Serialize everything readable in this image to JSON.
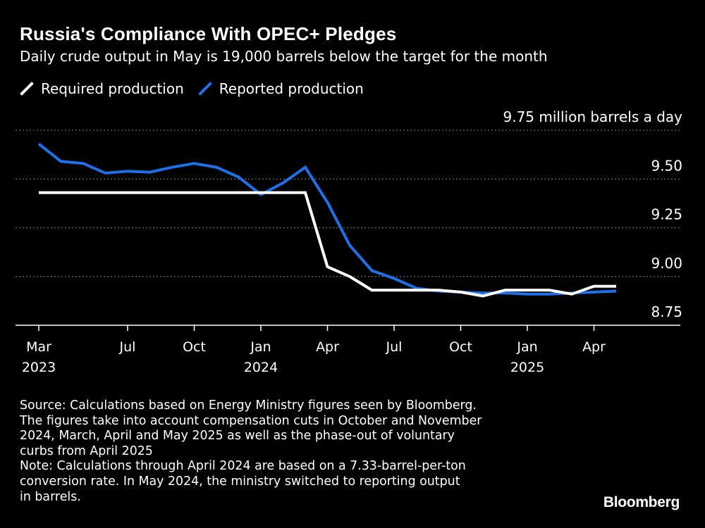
{
  "header": {
    "title": "Russia's Compliance With OPEC+ Pledges",
    "subtitle": "Daily crude output in May is 19,000 barrels below the target for the month"
  },
  "footer": {
    "lines": [
      "Source: Calculations based on Energy Ministry figures seen by Bloomberg.",
      "The figures take into account compensation cuts in October and November",
      "2024, March, April and May 2025 as well as the phase-out of voluntary",
      "curbs from April 2025",
      "Note: Calculations through April 2024 are based on a 7.33-barrel-per-ton",
      "conversion rate. In May 2024, the ministry switched to reporting output",
      "in barrels."
    ],
    "brand": "Bloomberg"
  },
  "colors": {
    "background": "#000000",
    "required": "#ffffff",
    "reported": "#1f6fe6",
    "grid": "#6b6b6b",
    "text": "#ffffff"
  },
  "chart_data": {
    "type": "line",
    "title": "Russia's Compliance With OPEC+ Pledges",
    "subtitle": "Daily crude output in May is 19,000 barrels below the target for the month",
    "xlabel": "",
    "ylabel": "",
    "unit_label": "9.75 million barrels a day",
    "ylim": [
      8.75,
      9.75
    ],
    "yticks": [
      9.5,
      9.25,
      9.0,
      8.75
    ],
    "ytick_labels": [
      "9.50",
      "9.25",
      "9.00",
      "8.75"
    ],
    "top_tick_value": 9.75,
    "grid": true,
    "grid_style": "dotted",
    "legend_position": "top-left",
    "x_axis": {
      "domain_months": [
        "2023-03",
        "2025-08"
      ],
      "ticks": [
        {
          "x": "2023-03",
          "label": "Mar",
          "year": "2023"
        },
        {
          "x": "2023-07",
          "label": "Jul"
        },
        {
          "x": "2023-10",
          "label": "Oct"
        },
        {
          "x": "2024-01",
          "label": "Jan",
          "year": "2024"
        },
        {
          "x": "2024-04",
          "label": "Apr"
        },
        {
          "x": "2024-07",
          "label": "Jul"
        },
        {
          "x": "2024-10",
          "label": "Oct"
        },
        {
          "x": "2025-01",
          "label": "Jan",
          "year": "2025"
        },
        {
          "x": "2025-04",
          "label": "Apr"
        }
      ]
    },
    "x": [
      "2023-03",
      "2023-04",
      "2023-05",
      "2023-06",
      "2023-07",
      "2023-08",
      "2023-09",
      "2023-10",
      "2023-11",
      "2023-12",
      "2024-01",
      "2024-02",
      "2024-03",
      "2024-04",
      "2024-05",
      "2024-06",
      "2024-07",
      "2024-08",
      "2024-09",
      "2024-10",
      "2024-11",
      "2024-12",
      "2025-01",
      "2025-02",
      "2025-03",
      "2025-04",
      "2025-05"
    ],
    "series": [
      {
        "name": "Required production",
        "color": "#ffffff",
        "values": [
          9.43,
          9.43,
          9.43,
          9.43,
          9.43,
          9.43,
          9.43,
          9.43,
          9.43,
          9.43,
          9.43,
          9.43,
          9.43,
          9.05,
          9.0,
          8.93,
          8.93,
          8.93,
          8.93,
          8.92,
          8.9,
          8.93,
          8.93,
          8.93,
          8.91,
          8.95,
          8.95
        ]
      },
      {
        "name": "Reported production",
        "color": "#1f6fe6",
        "values": [
          9.68,
          9.59,
          9.58,
          9.53,
          9.54,
          9.535,
          9.56,
          9.58,
          9.56,
          9.51,
          9.42,
          9.48,
          9.56,
          9.38,
          9.16,
          9.03,
          8.99,
          8.94,
          8.925,
          8.92,
          8.915,
          8.915,
          8.91,
          8.91,
          8.915,
          8.92,
          8.925
        ]
      }
    ]
  }
}
